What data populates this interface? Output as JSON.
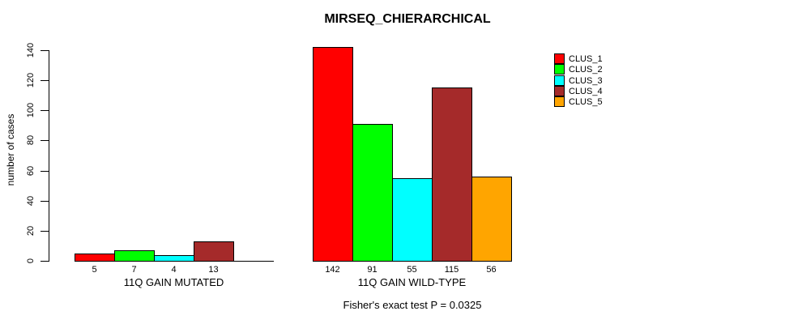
{
  "chart_data": {
    "type": "bar",
    "title": "MIRSEQ_CHIERARCHICAL",
    "ylabel": "number of cases",
    "ylim": [
      0,
      140
    ],
    "yticks": [
      0,
      20,
      40,
      60,
      80,
      100,
      120,
      140
    ],
    "grid": false,
    "legend_position": "right",
    "categories": [
      "11Q GAIN MUTATED",
      "11Q GAIN WILD-TYPE"
    ],
    "series": [
      {
        "name": "CLUS_1",
        "color": "#FF0000",
        "values": [
          5,
          142
        ]
      },
      {
        "name": "CLUS_2",
        "color": "#00FF00",
        "values": [
          7,
          91
        ]
      },
      {
        "name": "CLUS_3",
        "color": "#00FFFF",
        "values": [
          4,
          55
        ]
      },
      {
        "name": "CLUS_4",
        "color": "#A52A2A",
        "values": [
          13,
          115
        ]
      },
      {
        "name": "CLUS_5",
        "color": "#FFA500",
        "values": [
          0,
          56
        ]
      }
    ],
    "bar_value_labels": [
      [
        "5",
        "7",
        "4",
        "13",
        ""
      ],
      [
        "142",
        "91",
        "55",
        "115",
        "56"
      ]
    ],
    "annotation": "Fisher's exact test P = 0.0325"
  },
  "colors": {
    "background": "#FFFFFF",
    "axis": "#000000",
    "text": "#000000"
  }
}
